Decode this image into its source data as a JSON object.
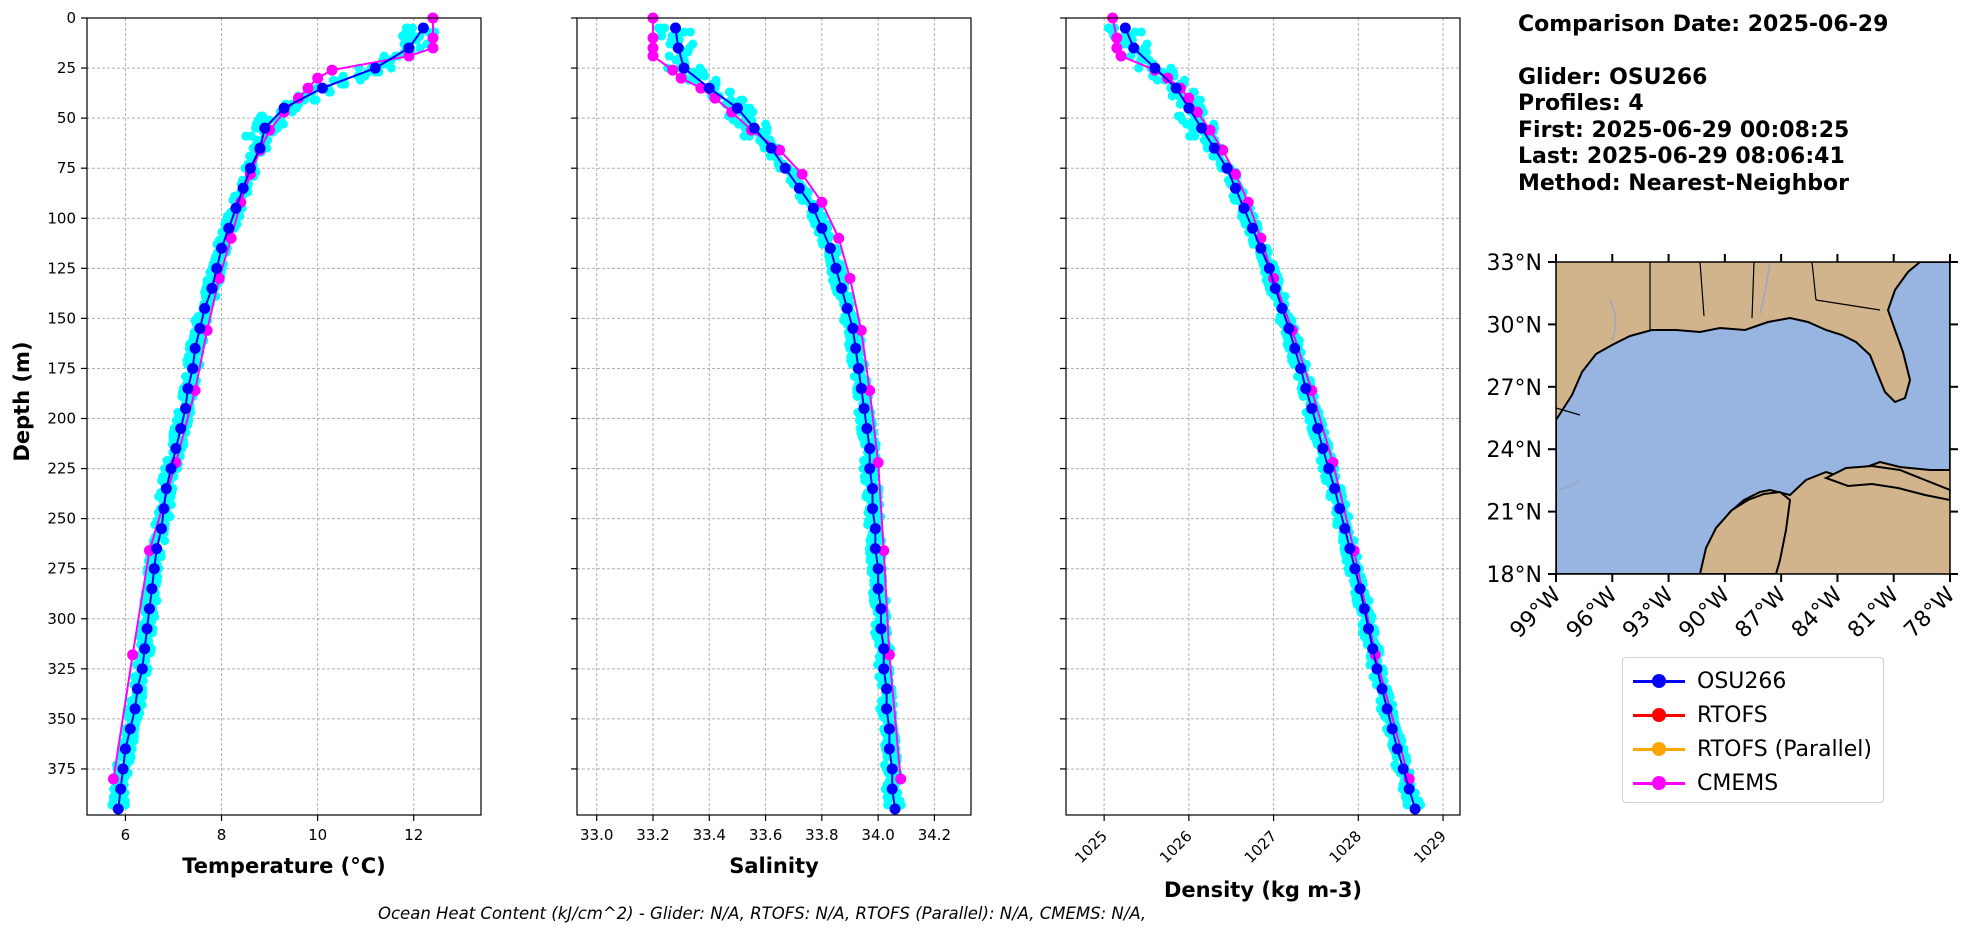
{
  "info": {
    "comparison_date": "Comparison Date: 2025-06-29",
    "glider": "Glider: OSU266",
    "profiles": "Profiles: 4",
    "first": "First: 2025-06-29 00:08:25",
    "last": "Last: 2025-06-29 08:06:41",
    "method": "Method: Nearest-Neighbor"
  },
  "legend": [
    {
      "label": "OSU266",
      "color": "#0000ff"
    },
    {
      "label": "RTOFS",
      "color": "#ff0000"
    },
    {
      "label": "RTOFS (Parallel)",
      "color": "#ffa500"
    },
    {
      "label": "CMEMS",
      "color": "#ff00ff"
    }
  ],
  "footer": "Ocean Heat Content (kJ/cm^2) - Glider: N/A,  RTOFS: N/A,  RTOFS (Parallel): N/A,  CMEMS: N/A,",
  "colors": {
    "glider_raw": "#00ffff",
    "glider": "#0000ff",
    "cmems": "#ff00ff",
    "land": "#d2b48c",
    "ocean": "#98b5e2",
    "grid": "#b0b0b0"
  },
  "map": {
    "lat_labels": [
      "33°N",
      "30°N",
      "27°N",
      "24°N",
      "21°N",
      "18°N"
    ],
    "lon_labels": [
      "99°W",
      "96°W",
      "93°W",
      "90°W",
      "87°W",
      "84°W",
      "81°W",
      "78°W"
    ],
    "lat_range": [
      18,
      33
    ],
    "lon_range": [
      -99,
      -78
    ]
  },
  "chart_data": [
    {
      "type": "line",
      "xlabel": "Temperature (°C)",
      "ylabel": "Depth (m)",
      "xlim": [
        5.2,
        13.4
      ],
      "ylim": [
        398,
        0
      ],
      "xticks": [
        6,
        8,
        10,
        12
      ],
      "yticks": [
        0,
        25,
        50,
        75,
        100,
        125,
        150,
        175,
        200,
        225,
        250,
        275,
        300,
        325,
        350,
        375
      ],
      "grid": true,
      "series": [
        {
          "name": "OSU266",
          "depth": [
            5,
            15,
            25,
            35,
            45,
            55,
            65,
            75,
            85,
            95,
            105,
            115,
            125,
            135,
            145,
            155,
            165,
            175,
            185,
            195,
            205,
            215,
            225,
            235,
            245,
            255,
            265,
            275,
            285,
            295,
            305,
            315,
            325,
            335,
            345,
            355,
            365,
            375,
            385,
            395
          ],
          "values": [
            12.2,
            11.9,
            11.2,
            10.1,
            9.3,
            8.9,
            8.8,
            8.6,
            8.45,
            8.3,
            8.15,
            8.0,
            7.9,
            7.8,
            7.65,
            7.55,
            7.45,
            7.4,
            7.3,
            7.25,
            7.15,
            7.05,
            6.95,
            6.85,
            6.8,
            6.75,
            6.65,
            6.6,
            6.55,
            6.5,
            6.45,
            6.4,
            6.35,
            6.25,
            6.2,
            6.1,
            6.0,
            5.95,
            5.9,
            5.85
          ]
        },
        {
          "name": "CMEMS",
          "depth": [
            0,
            10,
            15,
            19,
            26,
            30,
            35,
            40,
            47,
            56,
            66,
            78,
            92,
            110,
            130,
            156,
            186,
            222,
            266,
            318,
            380
          ],
          "values": [
            12.4,
            12.4,
            12.4,
            11.9,
            10.3,
            10.0,
            9.8,
            9.6,
            9.3,
            9.0,
            8.8,
            8.6,
            8.4,
            8.2,
            7.95,
            7.7,
            7.45,
            7.05,
            6.5,
            6.15,
            5.75
          ]
        }
      ]
    },
    {
      "type": "line",
      "xlabel": "Salinity",
      "ylabel": "",
      "xlim": [
        32.93,
        34.33
      ],
      "ylim": [
        398,
        0
      ],
      "xticks": [
        33.0,
        33.2,
        33.4,
        33.6,
        33.8,
        34.0,
        34.2
      ],
      "yticks": [
        0,
        25,
        50,
        75,
        100,
        125,
        150,
        175,
        200,
        225,
        250,
        275,
        300,
        325,
        350,
        375
      ],
      "grid": true,
      "series": [
        {
          "name": "OSU266",
          "depth": [
            5,
            15,
            25,
            35,
            45,
            55,
            65,
            75,
            85,
            95,
            105,
            115,
            125,
            135,
            145,
            155,
            165,
            175,
            185,
            195,
            205,
            215,
            225,
            235,
            245,
            255,
            265,
            275,
            285,
            295,
            305,
            315,
            325,
            335,
            345,
            355,
            365,
            375,
            385,
            395
          ],
          "values": [
            33.28,
            33.29,
            33.31,
            33.4,
            33.5,
            33.56,
            33.62,
            33.67,
            33.72,
            33.77,
            33.8,
            33.83,
            33.85,
            33.87,
            33.89,
            33.91,
            33.92,
            33.93,
            33.94,
            33.95,
            33.96,
            33.97,
            33.97,
            33.98,
            33.98,
            33.99,
            33.99,
            34.0,
            34.0,
            34.01,
            34.01,
            34.02,
            34.02,
            34.03,
            34.03,
            34.04,
            34.04,
            34.05,
            34.05,
            34.06
          ]
        },
        {
          "name": "CMEMS",
          "depth": [
            0,
            10,
            15,
            19,
            26,
            30,
            35,
            40,
            47,
            56,
            66,
            78,
            92,
            110,
            130,
            156,
            186,
            222,
            266,
            318,
            380
          ],
          "values": [
            33.2,
            33.2,
            33.2,
            33.2,
            33.27,
            33.3,
            33.37,
            33.42,
            33.48,
            33.55,
            33.65,
            33.73,
            33.8,
            33.86,
            33.9,
            33.94,
            33.97,
            34.0,
            34.02,
            34.04,
            34.08
          ]
        }
      ]
    },
    {
      "type": "line",
      "xlabel": "Density (kg m-3)",
      "ylabel": "",
      "xlim": [
        1024.55,
        1029.2
      ],
      "ylim": [
        398,
        0
      ],
      "xticks": [
        1025,
        1026,
        1027,
        1028,
        1029
      ],
      "yticks": [
        0,
        25,
        50,
        75,
        100,
        125,
        150,
        175,
        200,
        225,
        250,
        275,
        300,
        325,
        350,
        375
      ],
      "grid": true,
      "series": [
        {
          "name": "OSU266",
          "depth": [
            5,
            15,
            25,
            35,
            45,
            55,
            65,
            75,
            85,
            95,
            105,
            115,
            125,
            135,
            145,
            155,
            165,
            175,
            185,
            195,
            205,
            215,
            225,
            235,
            245,
            255,
            265,
            275,
            285,
            295,
            305,
            315,
            325,
            335,
            345,
            355,
            365,
            375,
            385,
            395
          ],
          "values": [
            1025.25,
            1025.35,
            1025.6,
            1025.85,
            1026.0,
            1026.15,
            1026.3,
            1026.45,
            1026.55,
            1026.65,
            1026.75,
            1026.85,
            1026.95,
            1027.02,
            1027.1,
            1027.18,
            1027.25,
            1027.32,
            1027.38,
            1027.45,
            1027.52,
            1027.58,
            1027.65,
            1027.72,
            1027.78,
            1027.84,
            1027.9,
            1027.96,
            1028.02,
            1028.07,
            1028.12,
            1028.17,
            1028.22,
            1028.28,
            1028.34,
            1028.4,
            1028.46,
            1028.53,
            1028.6,
            1028.67
          ]
        },
        {
          "name": "CMEMS",
          "depth": [
            0,
            10,
            15,
            19,
            26,
            30,
            35,
            40,
            47,
            56,
            66,
            78,
            92,
            110,
            130,
            156,
            186,
            222,
            266,
            318,
            380
          ],
          "values": [
            1025.1,
            1025.15,
            1025.15,
            1025.2,
            1025.6,
            1025.75,
            1025.9,
            1026.0,
            1026.1,
            1026.25,
            1026.4,
            1026.55,
            1026.7,
            1026.85,
            1027.0,
            1027.22,
            1027.45,
            1027.7,
            1027.95,
            1028.2,
            1028.6
          ]
        }
      ]
    }
  ]
}
